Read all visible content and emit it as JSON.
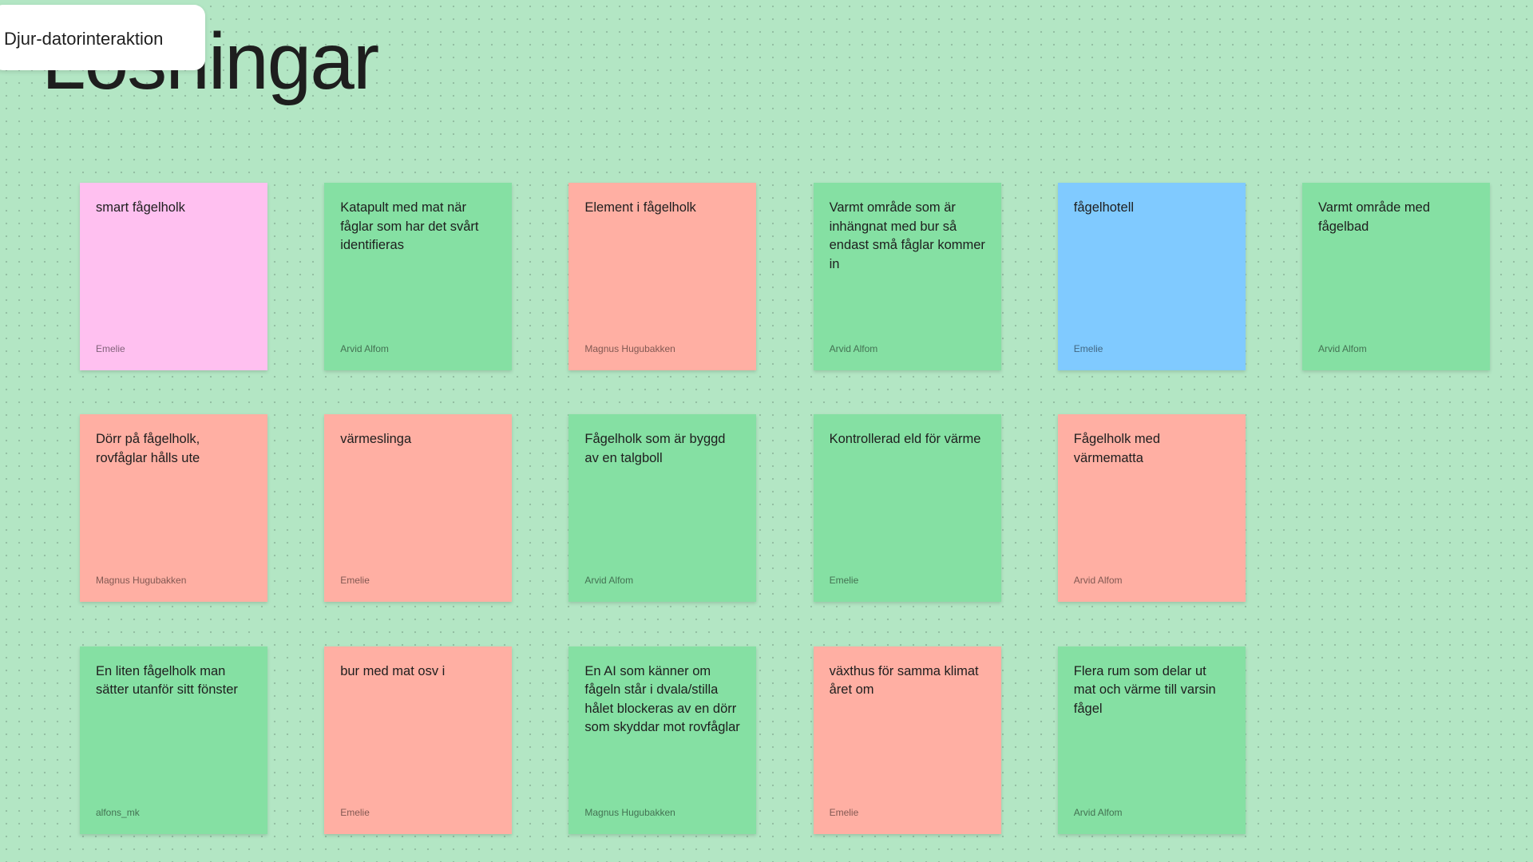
{
  "header": {
    "title": "Lösningar",
    "tooltip": "Djur-datorinteraktion"
  },
  "rows": [
    [
      {
        "text": "smart fågelholk",
        "author": "Emelie",
        "color": "#ffc0f0"
      },
      {
        "text": "Katapult med mat när fåglar som har det svårt identifieras",
        "author": "Arvid Alfom",
        "color": "#85e0a3"
      },
      {
        "text": "Element i fågelholk",
        "author": "Magnus Hugubakken",
        "color": "#ffafa3"
      },
      {
        "text": "Varmt område som är inhängnat med bur så endast små fåglar kommer in",
        "author": "Arvid Alfom",
        "color": "#85e0a3"
      },
      {
        "text": "fågelhotell",
        "author": "Emelie",
        "color": "#80caff"
      },
      {
        "text": "Varmt område med fågelbad",
        "author": "Arvid Alfom",
        "color": "#85e0a3"
      }
    ],
    [
      {
        "text": "Dörr på fågelholk, rovfåglar hålls ute",
        "author": "Magnus Hugubakken",
        "color": "#ffafa3"
      },
      {
        "text": "värmeslinga",
        "author": "Emelie",
        "color": "#ffafa3"
      },
      {
        "text": "Fågelholk som är byggd av en talgboll",
        "author": "Arvid Alfom",
        "color": "#85e0a3"
      },
      {
        "text": "Kontrollerad eld för värme",
        "author": "Emelie",
        "color": "#85e0a3"
      },
      {
        "text": "Fågelholk med värmematta",
        "author": "Arvid Alfom",
        "color": "#ffafa3"
      }
    ],
    [
      {
        "text": "En liten fågelholk man sätter utanför sitt fönster",
        "author": "alfons_mk",
        "color": "#85e0a3"
      },
      {
        "text": "bur med mat osv i",
        "author": "Emelie",
        "color": "#ffafa3"
      },
      {
        "text": "En AI som känner om fågeln står i dvala/stilla hålet blockeras av en dörr som skyddar mot rovfåglar",
        "author": "Magnus Hugubakken",
        "color": "#85e0a3"
      },
      {
        "text": "växthus för samma klimat året om",
        "author": "Emelie",
        "color": "#ffafa3"
      },
      {
        "text": "Flera rum som delar ut mat och värme till varsin fågel",
        "author": "Arvid Alfom",
        "color": "#85e0a3"
      }
    ]
  ]
}
